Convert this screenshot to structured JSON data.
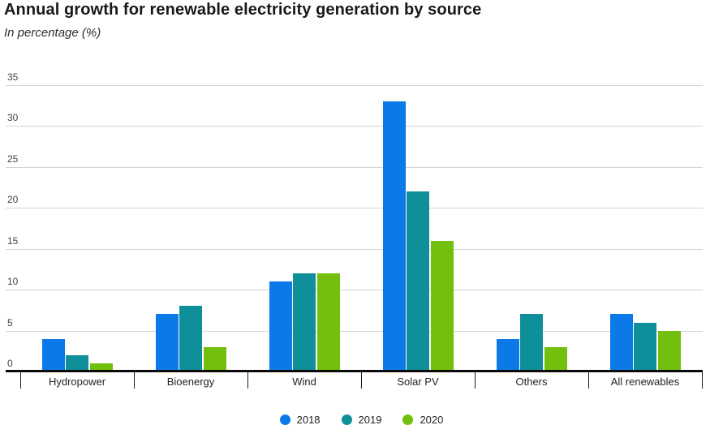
{
  "header": {
    "title": "Annual growth for renewable electricity generation by source",
    "subtitle": "In percentage (%)"
  },
  "chart_data": {
    "type": "bar",
    "title": "Annual growth for renewable electricity generation by source",
    "subtitle": "In percentage (%)",
    "categories": [
      "Hydropower",
      "Bioenergy",
      "Wind",
      "Solar PV",
      "Others",
      "All renewables"
    ],
    "series": [
      {
        "name": "2018",
        "color": "#0b79e8",
        "values": [
          4,
          7,
          11,
          33,
          4,
          7
        ]
      },
      {
        "name": "2019",
        "color": "#0e8f99",
        "values": [
          2,
          8,
          12,
          22,
          7,
          6
        ]
      },
      {
        "name": "2020",
        "color": "#73bf0e",
        "values": [
          1,
          3,
          12,
          16,
          3,
          5
        ]
      }
    ],
    "xlabel": "",
    "ylabel": "",
    "ylim": [
      0,
      35
    ],
    "yticks": [
      0,
      5,
      10,
      15,
      20,
      25,
      30,
      35
    ],
    "grid": true,
    "grid_color": "#d4d4d4",
    "axis_color": "#0a0a0a",
    "legend_position": "bottom"
  }
}
